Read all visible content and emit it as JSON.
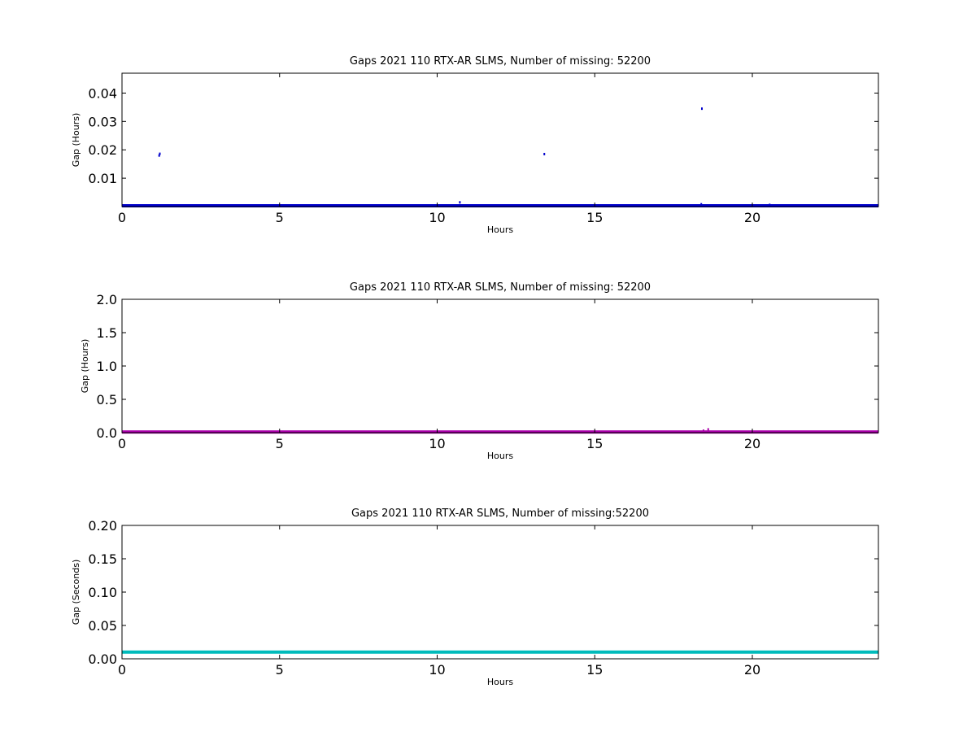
{
  "colors": {
    "panel_1": "#0000cc",
    "panel_2": "#aa00aa",
    "panel_3": "#00bbbb"
  },
  "chart_data": [
    {
      "type": "scatter",
      "title": "Gaps 2021 110 RTX-AR  SLMS, Number of missing: 52200",
      "xlabel": "Hours",
      "ylabel": "Gap (Hours)",
      "xlim": [
        0,
        24
      ],
      "ylim": [
        0,
        0.047
      ],
      "x_ticks": [
        "0",
        "5",
        "10",
        "15",
        "20"
      ],
      "y_ticks": [
        "0.01",
        "0.02",
        "0.03",
        "0.04"
      ],
      "y_tick_values": [
        0.01,
        0.02,
        0.03,
        0.04
      ],
      "grid": false,
      "color": "#0000cc",
      "baseline": {
        "x": [
          0,
          24
        ],
        "y": 0.0003
      },
      "points": [
        {
          "x": 1.18,
          "y": 0.018
        },
        {
          "x": 1.2,
          "y": 0.0186
        },
        {
          "x": 10.72,
          "y": 0.0015
        },
        {
          "x": 13.4,
          "y": 0.0185
        },
        {
          "x": 18.4,
          "y": 0.0345
        },
        {
          "x": 18.38,
          "y": 0.0008
        },
        {
          "x": 20.55,
          "y": 0.0006
        }
      ]
    },
    {
      "type": "scatter",
      "title": "Gaps 2021 110 RTX-AR  SLMS, Number of missing: 52200",
      "xlabel": "Hours",
      "ylabel": "Gap (Hours)",
      "xlim": [
        0,
        24
      ],
      "ylim": [
        0,
        2.0
      ],
      "x_ticks": [
        "0",
        "5",
        "10",
        "15",
        "20"
      ],
      "y_ticks": [
        "0.0",
        "0.5",
        "1.0",
        "1.5",
        "2.0"
      ],
      "y_tick_values": [
        0.0,
        0.5,
        1.0,
        1.5,
        2.0
      ],
      "grid": false,
      "color": "#aa00aa",
      "baseline": {
        "x": [
          0,
          24
        ],
        "y": 0.01
      },
      "points": [
        {
          "x": 18.45,
          "y": 0.03
        },
        {
          "x": 18.6,
          "y": 0.05
        }
      ]
    },
    {
      "type": "line",
      "title": "Gaps 2021 110 RTX-AR  SLMS, Number of missing:52200",
      "xlabel": "Hours",
      "ylabel": "Gap (Seconds)",
      "xlim": [
        0,
        24
      ],
      "ylim": [
        0,
        0.2
      ],
      "x_ticks": [
        "0",
        "5",
        "10",
        "15",
        "20"
      ],
      "y_ticks": [
        "0.00",
        "0.05",
        "0.10",
        "0.15",
        "0.20"
      ],
      "y_tick_values": [
        0.0,
        0.05,
        0.1,
        0.15,
        0.2
      ],
      "grid": false,
      "color": "#00bbbb",
      "baseline": {
        "x": [
          0,
          24
        ],
        "y": 0.01
      },
      "points": []
    }
  ]
}
